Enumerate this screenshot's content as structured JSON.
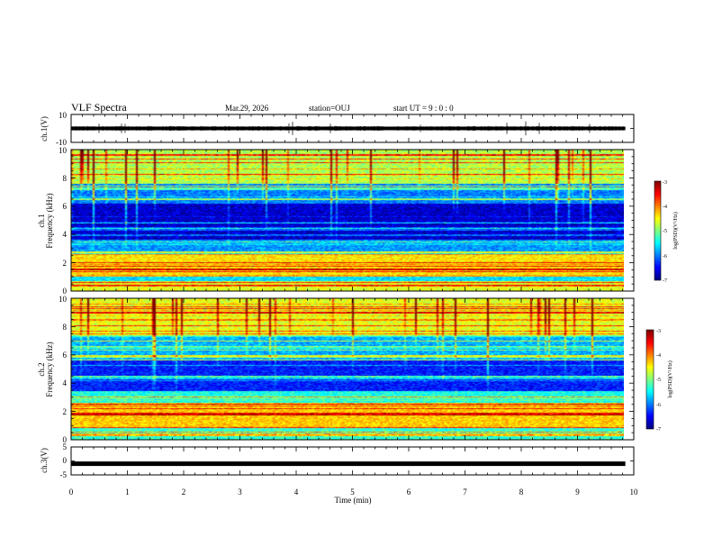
{
  "header": {
    "title": "VLF Spectra",
    "date": "Mar.29, 2026",
    "station": "station=OUJ",
    "start_ut": "start  UT  =   9 : 0  : 0"
  },
  "chart_data": [
    {
      "type": "line",
      "id": "ch1-waveform",
      "ylabel": "ch.1(V)",
      "ylim": [
        -10,
        10
      ],
      "yticks": [
        "10",
        "-10"
      ],
      "baseline": 0,
      "xlim": [
        0,
        10
      ]
    },
    {
      "type": "heatmap",
      "id": "ch1-spectrogram",
      "ylabel": "ch.1\nFrequency  (kHz)",
      "ylabel_ch": "ch.1",
      "ylabel_freq": "Frequency  (kHz)",
      "ylim": [
        0,
        10
      ],
      "yticks": [
        "0",
        "2",
        "4",
        "6",
        "8",
        "10"
      ],
      "xlim": [
        0,
        9.85
      ],
      "colorbar": {
        "label": "log(PSD)(V²/Hz)",
        "range": [
          -7,
          -3
        ],
        "ticks": [
          "-3",
          "-4",
          "-5",
          "-6",
          "-7"
        ]
      },
      "bands": [
        {
          "from": 0,
          "to": 0.6,
          "level": -4.6
        },
        {
          "from": 0.6,
          "to": 1.0,
          "level": -5.6
        },
        {
          "from": 1.0,
          "to": 2.6,
          "level": -4.4
        },
        {
          "from": 2.6,
          "to": 3.6,
          "level": -5.9
        },
        {
          "from": 3.6,
          "to": 6.2,
          "level": -6.7
        },
        {
          "from": 6.2,
          "to": 7.6,
          "level": -6.0
        },
        {
          "from": 7.6,
          "to": 10.0,
          "level": -4.8
        }
      ]
    },
    {
      "type": "heatmap",
      "id": "ch2-spectrogram",
      "ylabel": "ch.2\nFrequency  (kHz)",
      "ylabel_ch": "ch.2",
      "ylabel_freq": "Frequency  (kHz)",
      "ylim": [
        0,
        10
      ],
      "yticks": [
        "0",
        "2",
        "4",
        "6",
        "8",
        "10"
      ],
      "xlim": [
        0,
        9.85
      ],
      "colorbar": {
        "label": "log(PSD)(V²/Hz)",
        "range": [
          -7,
          -3
        ],
        "ticks": [
          "-3",
          "-4",
          "-5",
          "-6",
          "-7"
        ]
      },
      "bands": [
        {
          "from": 0,
          "to": 0.8,
          "level": -5.3
        },
        {
          "from": 0.8,
          "to": 2.6,
          "level": -4.3
        },
        {
          "from": 2.6,
          "to": 3.4,
          "level": -5.4
        },
        {
          "from": 3.4,
          "to": 5.6,
          "level": -6.4
        },
        {
          "from": 5.6,
          "to": 7.4,
          "level": -5.8
        },
        {
          "from": 7.4,
          "to": 10.0,
          "level": -4.6
        }
      ]
    },
    {
      "type": "line",
      "id": "ch3-waveform",
      "ylabel": "ch.3(V)",
      "ylim": [
        -5,
        5
      ],
      "yticks": [
        "5",
        "0",
        "-5"
      ],
      "baseline": -1,
      "xlim": [
        0,
        9.85
      ]
    }
  ],
  "xaxis": {
    "label": "Time  (min)",
    "ticks": [
      "0",
      "1",
      "2",
      "3",
      "4",
      "5",
      "6",
      "7",
      "8",
      "9",
      "10"
    ],
    "range": [
      0,
      10
    ]
  }
}
